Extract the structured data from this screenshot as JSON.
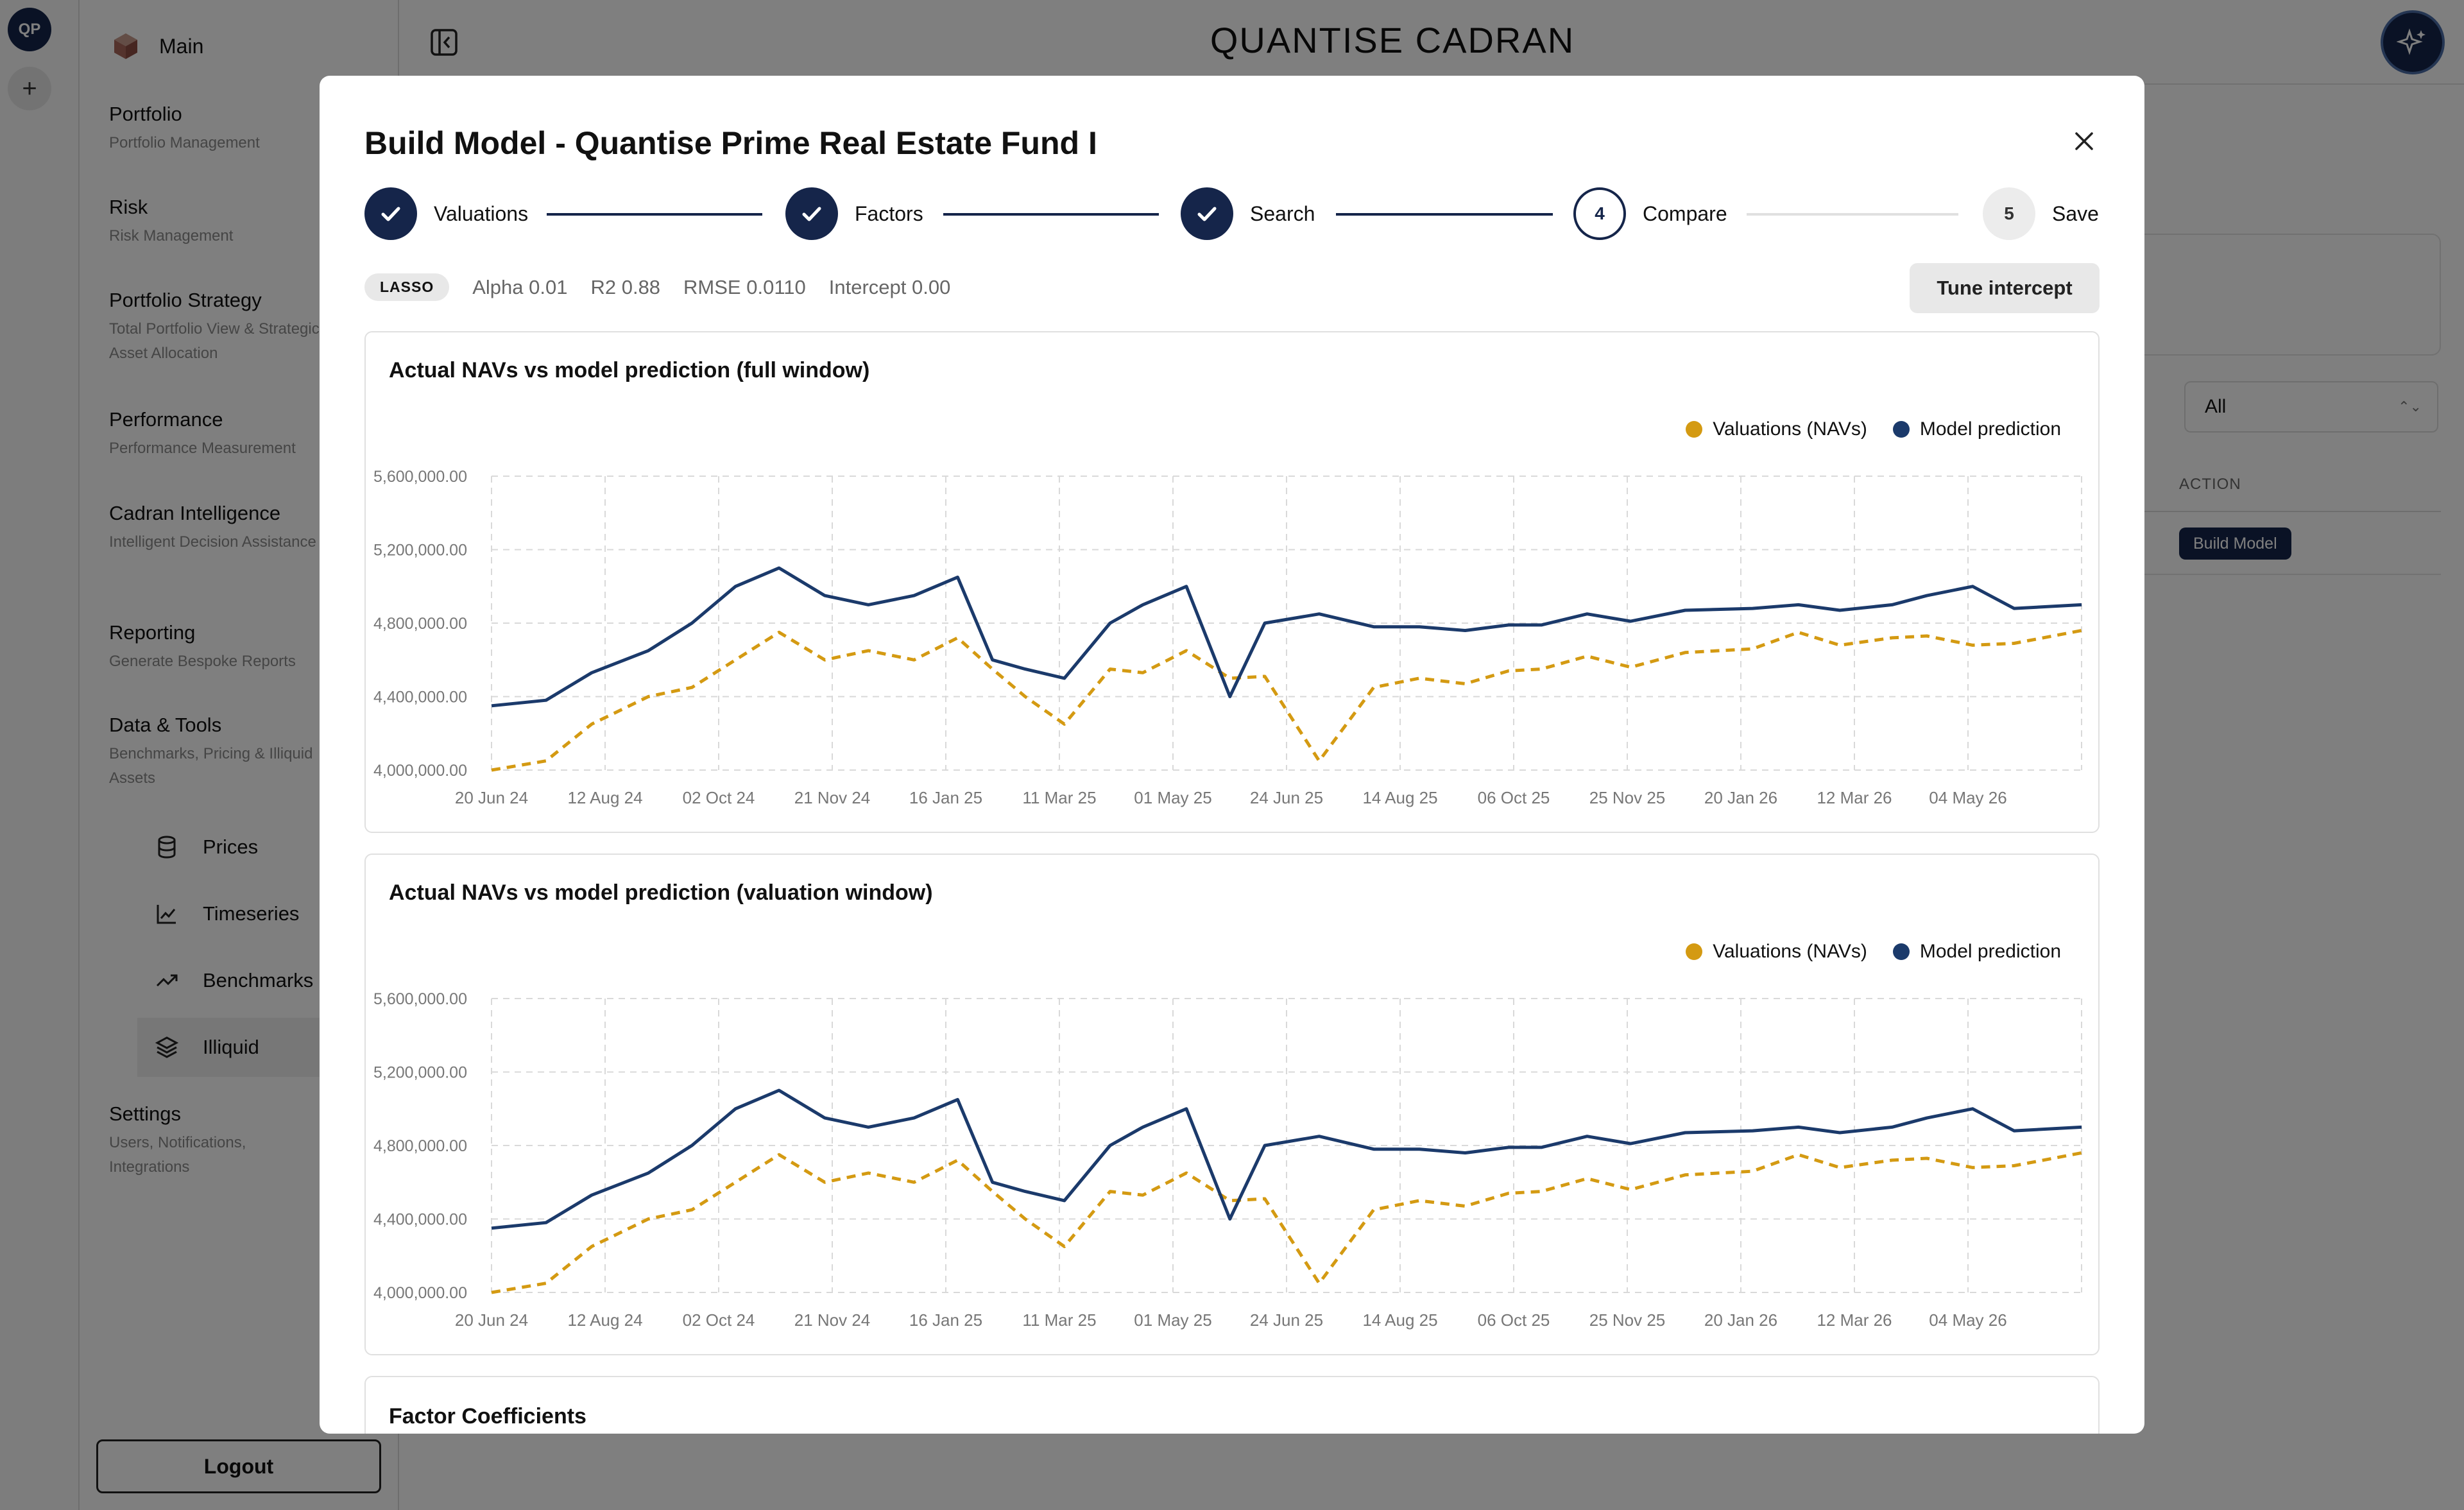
{
  "app": {
    "title": "QUANTISE CADRAN",
    "user_initials": "QP"
  },
  "sidebar": {
    "main_label": "Main",
    "sections": [
      {
        "title": "Portfolio",
        "subtitle": "Portfolio Management"
      },
      {
        "title": "Risk",
        "subtitle": "Risk Management"
      },
      {
        "title": "Portfolio Strategy",
        "subtitle": "Total Portfolio View & Strategic Asset Allocation"
      },
      {
        "title": "Performance",
        "subtitle": "Performance Measurement"
      },
      {
        "title": "Cadran Intelligence",
        "subtitle": "Intelligent Decision Assistance"
      },
      {
        "title": "Reporting",
        "subtitle": "Generate Bespoke Reports"
      },
      {
        "title": "Data & Tools",
        "subtitle": "Benchmarks, Pricing & Illiquid Assets"
      }
    ],
    "tools": [
      {
        "label": "Prices",
        "icon": "database-icon"
      },
      {
        "label": "Timeseries",
        "icon": "line-chart-icon"
      },
      {
        "label": "Benchmarks",
        "icon": "trend-icon"
      },
      {
        "label": "Illiquid",
        "icon": "layers-icon"
      }
    ],
    "settings": {
      "title": "Settings",
      "subtitle": "Users, Notifications, Integrations"
    },
    "logout_label": "Logout"
  },
  "background": {
    "filter_value": "All",
    "table_header": "ACTION",
    "row_button": "Build Model"
  },
  "modal": {
    "title": "Build Model - Quantise Prime Real Estate Fund I",
    "steps": [
      {
        "label": "Valuations",
        "state": "done"
      },
      {
        "label": "Factors",
        "state": "done"
      },
      {
        "label": "Search",
        "state": "done"
      },
      {
        "label": "Compare",
        "state": "current",
        "number": "4"
      },
      {
        "label": "Save",
        "state": "future",
        "number": "5"
      }
    ],
    "metrics": {
      "method": "LASSO",
      "alpha": "Alpha 0.01",
      "r2": "R2 0.88",
      "rmse": "RMSE 0.0110",
      "intercept": "Intercept 0.00"
    },
    "tune_button": "Tune intercept",
    "coefficients_title": "Factor Coefficients"
  },
  "colors": {
    "navy": "#1b3a6b",
    "gold": "#d49a12",
    "accent_dark": "#15254a"
  },
  "chart_data": [
    {
      "type": "line",
      "title": "Actual NAVs vs model prediction (full window)",
      "x_ticks": [
        "20 Jun 24",
        "12 Aug 24",
        "02 Oct 24",
        "21 Nov 24",
        "16 Jan 25",
        "11 Mar 25",
        "01 May 25",
        "24 Jun 25",
        "14 Aug 25",
        "06 Oct 25",
        "25 Nov 25",
        "20 Jan 26",
        "12 Mar 26",
        "04 May 26"
      ],
      "y_ticks": [
        "4,000,000.00",
        "4,400,000.00",
        "4,800,000.00",
        "5,200,000.00",
        "5,600,000.00"
      ],
      "ylim": [
        4000000,
        5600000
      ],
      "xlim": [
        "2024-06-20",
        "2026-06-20"
      ],
      "grid": true,
      "legend_position": "top-right",
      "series": [
        {
          "name": "Valuations (NAVs)",
          "color": "#d49a12",
          "style": "dashed",
          "x": [
            "2024-06-20",
            "2024-07-15",
            "2024-08-05",
            "2024-08-31",
            "2024-09-20",
            "2024-10-10",
            "2024-10-30",
            "2024-11-20",
            "2024-12-10",
            "2024-12-31",
            "2025-01-20",
            "2025-02-05",
            "2025-02-20",
            "2025-03-10",
            "2025-03-31",
            "2025-04-15",
            "2025-05-05",
            "2025-05-25",
            "2025-06-10",
            "2025-07-05",
            "2025-07-30",
            "2025-08-20",
            "2025-09-10",
            "2025-09-30",
            "2025-10-15",
            "2025-11-05",
            "2025-11-25",
            "2025-12-20",
            "2026-01-20",
            "2026-02-10",
            "2026-03-01",
            "2026-03-25",
            "2026-04-10",
            "2026-05-01",
            "2026-05-20",
            "2026-06-20"
          ],
          "values": [
            4000000,
            4050000,
            4250000,
            4400000,
            4450000,
            4600000,
            4750000,
            4600000,
            4650000,
            4600000,
            4720000,
            4550000,
            4400000,
            4250000,
            4550000,
            4530000,
            4650000,
            4500000,
            4510000,
            4050000,
            4450000,
            4500000,
            4470000,
            4540000,
            4550000,
            4620000,
            4560000,
            4640000,
            4660000,
            4750000,
            4680000,
            4720000,
            4730000,
            4680000,
            4690000,
            4760000
          ]
        },
        {
          "name": "Model prediction",
          "color": "#1b3a6b",
          "style": "solid",
          "x": [
            "2024-06-20",
            "2024-07-15",
            "2024-08-05",
            "2024-08-31",
            "2024-09-20",
            "2024-10-10",
            "2024-10-30",
            "2024-11-20",
            "2024-12-10",
            "2024-12-31",
            "2025-01-20",
            "2025-02-05",
            "2025-02-20",
            "2025-03-10",
            "2025-03-31",
            "2025-04-15",
            "2025-05-05",
            "2025-05-25",
            "2025-06-10",
            "2025-07-05",
            "2025-07-30",
            "2025-08-20",
            "2025-09-10",
            "2025-09-30",
            "2025-10-15",
            "2025-11-05",
            "2025-11-25",
            "2025-12-20",
            "2026-01-20",
            "2026-02-10",
            "2026-03-01",
            "2026-03-25",
            "2026-04-10",
            "2026-05-01",
            "2026-05-20",
            "2026-06-20"
          ],
          "values": [
            4350000,
            4380000,
            4530000,
            4650000,
            4800000,
            5000000,
            5100000,
            4950000,
            4900000,
            4950000,
            5050000,
            4600000,
            4550000,
            4500000,
            4800000,
            4900000,
            5000000,
            4400000,
            4800000,
            4850000,
            4780000,
            4780000,
            4760000,
            4790000,
            4790000,
            4850000,
            4810000,
            4870000,
            4880000,
            4900000,
            4870000,
            4900000,
            4950000,
            5000000,
            4880000,
            4900000
          ]
        }
      ]
    },
    {
      "type": "line",
      "title": "Actual NAVs vs model prediction (valuation window)",
      "x_ticks": [
        "20 Jun 24",
        "12 Aug 24",
        "02 Oct 24",
        "21 Nov 24",
        "16 Jan 25",
        "11 Mar 25",
        "01 May 25",
        "24 Jun 25",
        "14 Aug 25",
        "06 Oct 25",
        "25 Nov 25",
        "20 Jan 26",
        "12 Mar 26",
        "04 May 26"
      ],
      "y_ticks": [
        "4,000,000.00",
        "4,400,000.00",
        "4,800,000.00",
        "5,200,000.00",
        "5,600,000.00"
      ],
      "ylim": [
        4000000,
        5600000
      ],
      "xlim": [
        "2024-06-20",
        "2026-06-20"
      ],
      "grid": true,
      "legend_position": "top-right",
      "series": [
        {
          "name": "Valuations (NAVs)",
          "color": "#d49a12",
          "style": "dashed",
          "x": [
            "2024-06-20",
            "2024-07-15",
            "2024-08-05",
            "2024-08-31",
            "2024-09-20",
            "2024-10-10",
            "2024-10-30",
            "2024-11-20",
            "2024-12-10",
            "2024-12-31",
            "2025-01-20",
            "2025-02-05",
            "2025-02-20",
            "2025-03-10",
            "2025-03-31",
            "2025-04-15",
            "2025-05-05",
            "2025-05-25",
            "2025-06-10",
            "2025-07-05",
            "2025-07-30",
            "2025-08-20",
            "2025-09-10",
            "2025-09-30",
            "2025-10-15",
            "2025-11-05",
            "2025-11-25",
            "2025-12-20",
            "2026-01-20",
            "2026-02-10",
            "2026-03-01",
            "2026-03-25",
            "2026-04-10",
            "2026-05-01",
            "2026-05-20",
            "2026-06-20"
          ],
          "values": [
            4000000,
            4050000,
            4250000,
            4400000,
            4450000,
            4600000,
            4750000,
            4600000,
            4650000,
            4600000,
            4720000,
            4550000,
            4400000,
            4250000,
            4550000,
            4530000,
            4650000,
            4500000,
            4510000,
            4050000,
            4450000,
            4500000,
            4470000,
            4540000,
            4550000,
            4620000,
            4560000,
            4640000,
            4660000,
            4750000,
            4680000,
            4720000,
            4730000,
            4680000,
            4690000,
            4760000
          ]
        },
        {
          "name": "Model prediction",
          "color": "#1b3a6b",
          "style": "solid",
          "x": [
            "2024-06-20",
            "2024-07-15",
            "2024-08-05",
            "2024-08-31",
            "2024-09-20",
            "2024-10-10",
            "2024-10-30",
            "2024-11-20",
            "2024-12-10",
            "2024-12-31",
            "2025-01-20",
            "2025-02-05",
            "2025-02-20",
            "2025-03-10",
            "2025-03-31",
            "2025-04-15",
            "2025-05-05",
            "2025-05-25",
            "2025-06-10",
            "2025-07-05",
            "2025-07-30",
            "2025-08-20",
            "2025-09-10",
            "2025-09-30",
            "2025-10-15",
            "2025-11-05",
            "2025-11-25",
            "2025-12-20",
            "2026-01-20",
            "2026-02-10",
            "2026-03-01",
            "2026-03-25",
            "2026-04-10",
            "2026-05-01",
            "2026-05-20",
            "2026-06-20"
          ],
          "values": [
            4350000,
            4380000,
            4530000,
            4650000,
            4800000,
            5000000,
            5100000,
            4950000,
            4900000,
            4950000,
            5050000,
            4600000,
            4550000,
            4500000,
            4800000,
            4900000,
            5000000,
            4400000,
            4800000,
            4850000,
            4780000,
            4780000,
            4760000,
            4790000,
            4790000,
            4850000,
            4810000,
            4870000,
            4880000,
            4900000,
            4870000,
            4900000,
            4950000,
            5000000,
            4880000,
            4900000
          ]
        }
      ]
    }
  ]
}
